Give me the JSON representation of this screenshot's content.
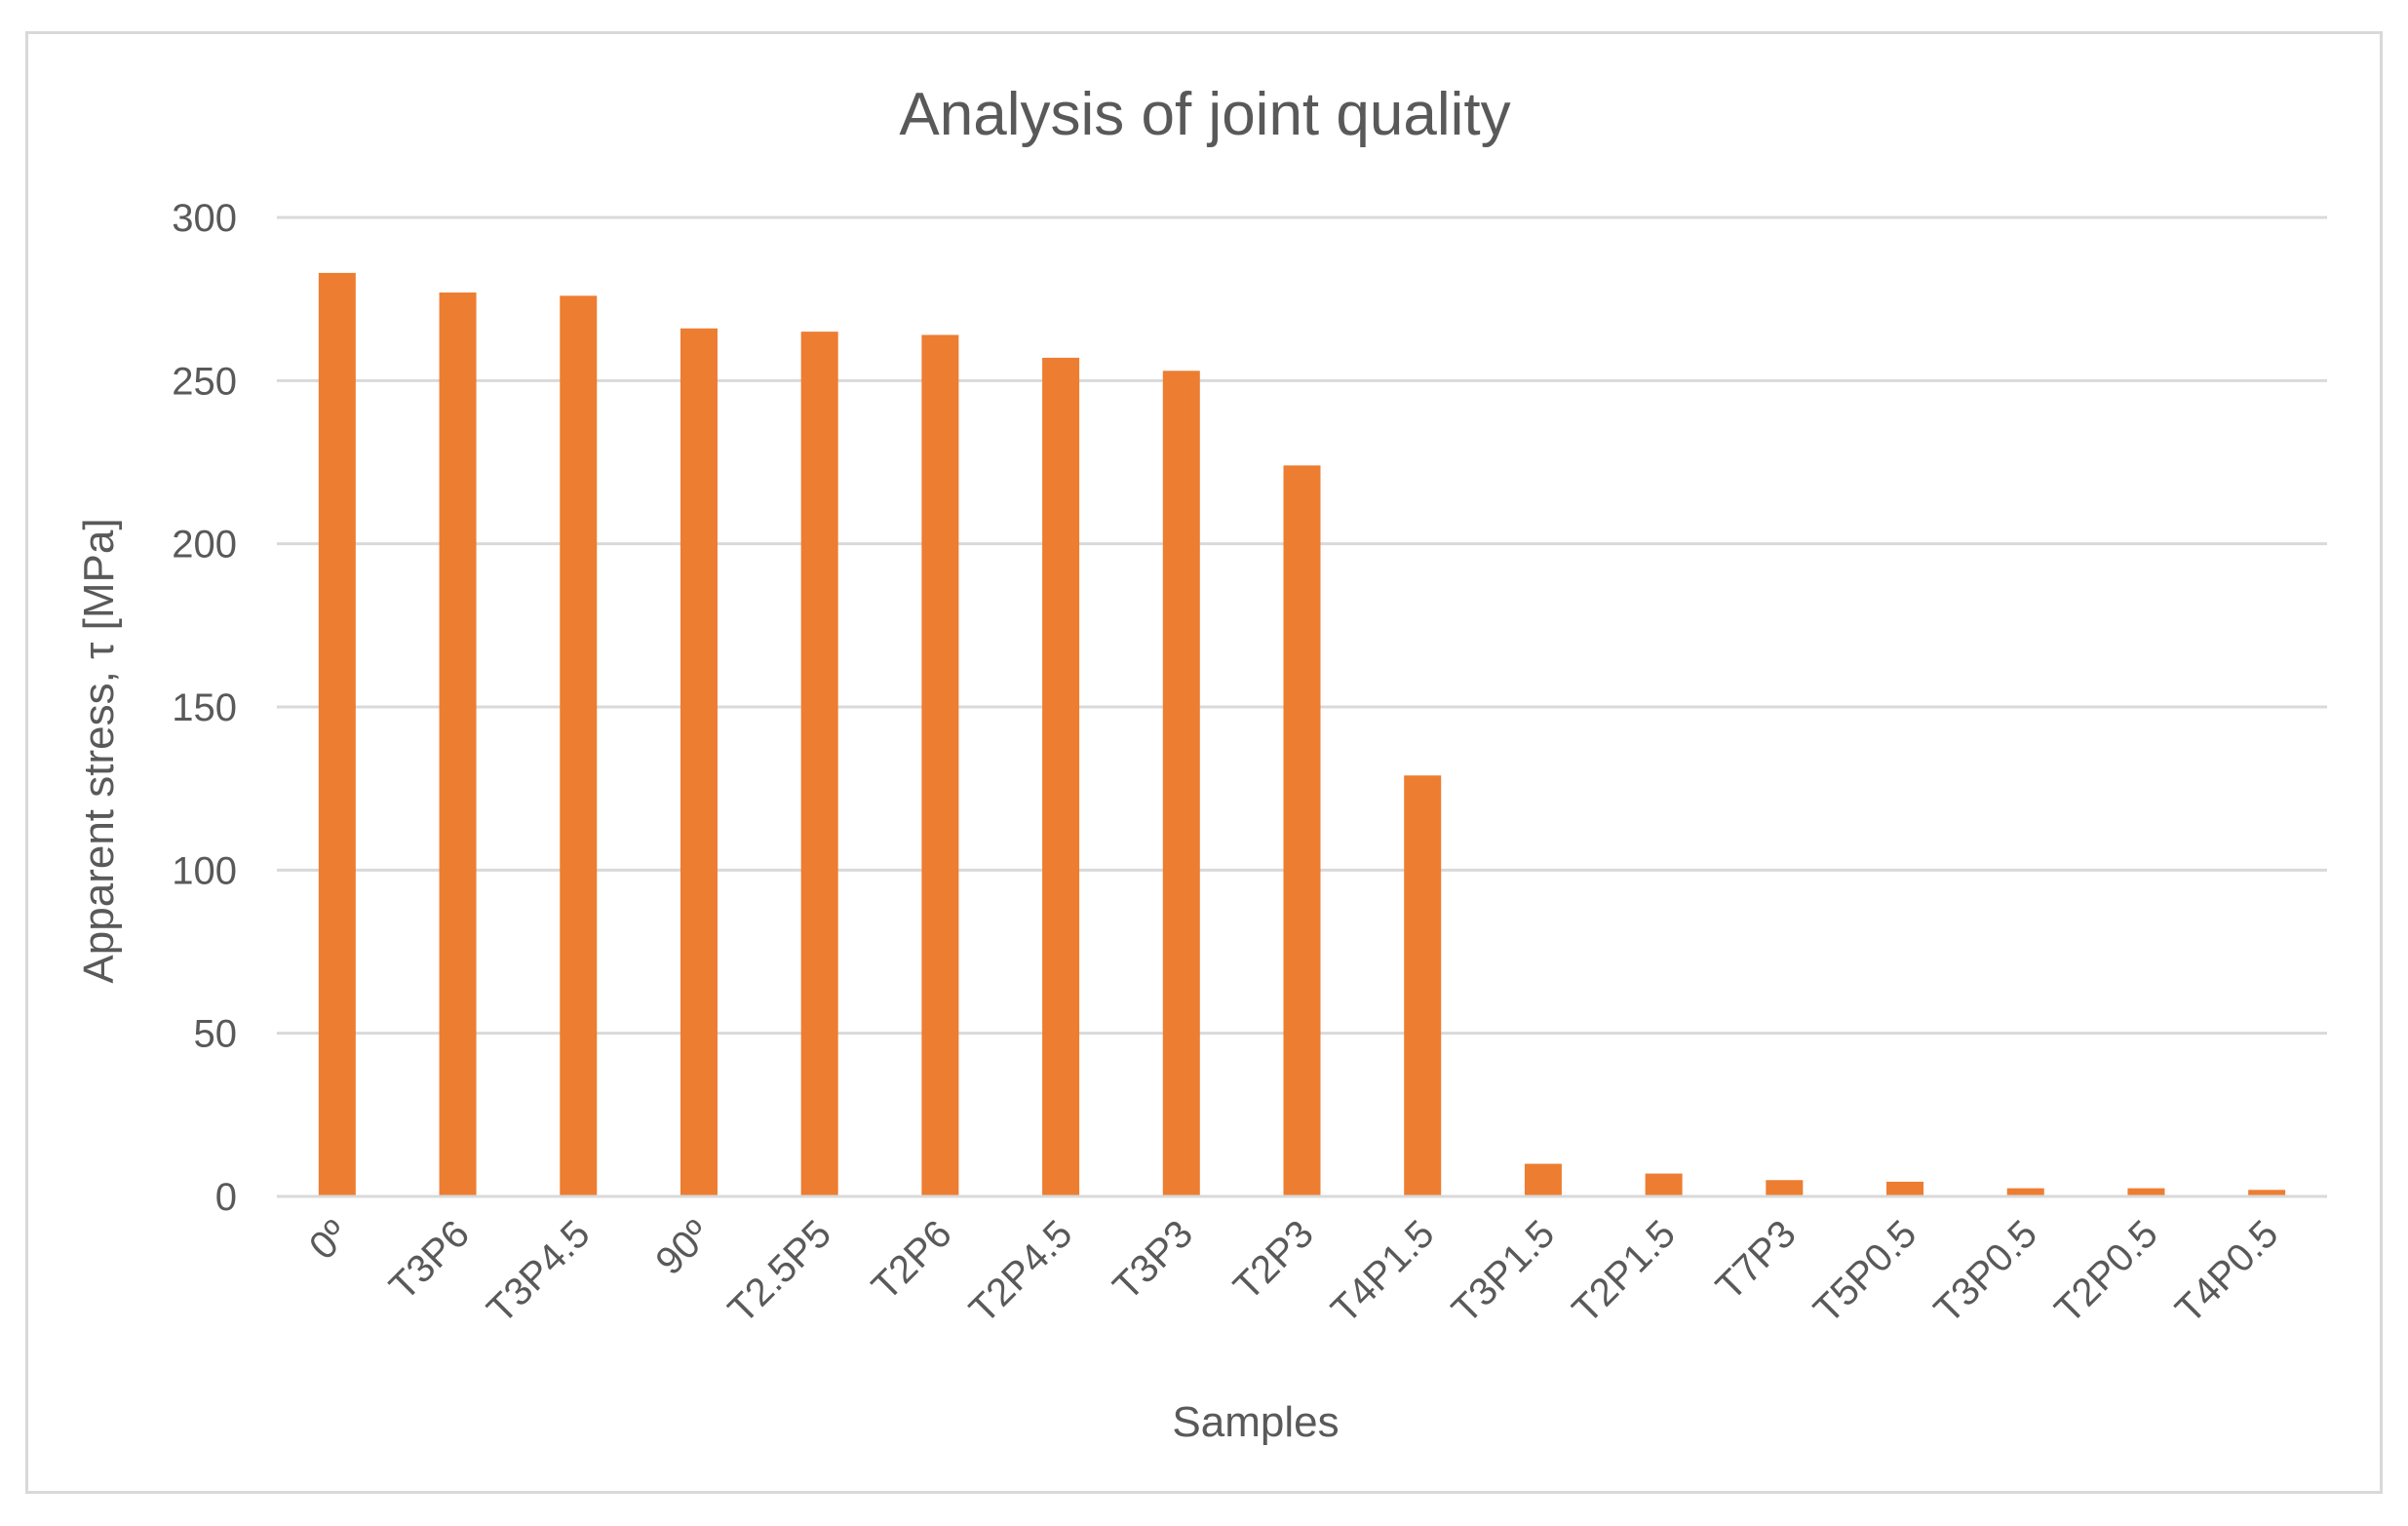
{
  "chart_data": {
    "type": "bar",
    "title": "Analysis of joint quality",
    "xlabel": "Samples",
    "ylabel": "Apparent stress, τ [MPa]",
    "ylim": [
      0,
      300
    ],
    "yticks": [
      0,
      50,
      100,
      150,
      200,
      250,
      300
    ],
    "grid": true,
    "legend": "none",
    "bar_color": "#ED7D31",
    "categories": [
      "0º",
      "T3P6",
      "T3P4.5",
      "90º",
      "T2.5P5",
      "T2P6",
      "T2P4.5",
      "T3P3",
      "T2P3",
      "T4P1.5",
      "T3P1.5",
      "T2P1.5",
      "T7P3",
      "T5P0.5",
      "T3P0.5",
      "T2P0.5",
      "T4P0.5"
    ],
    "values": [
      283,
      277,
      276,
      266,
      265,
      264,
      257,
      253,
      224,
      129,
      10,
      7,
      5,
      4.5,
      2.5,
      2.5,
      2
    ]
  }
}
